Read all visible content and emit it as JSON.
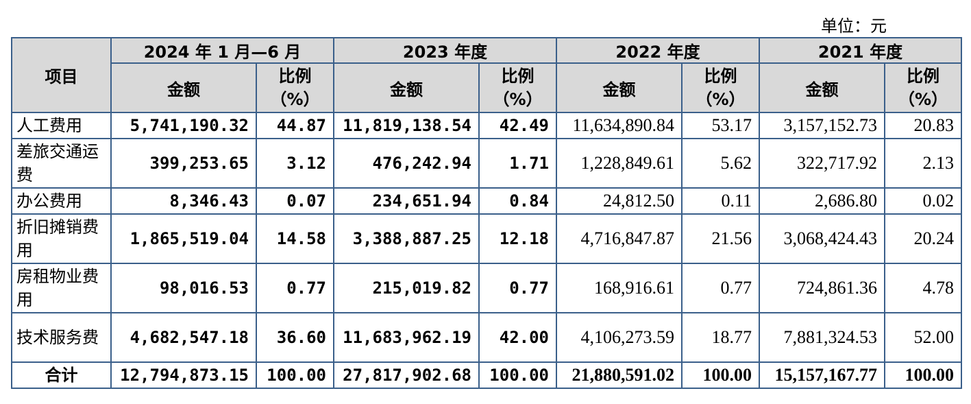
{
  "unit_label": "单位：元",
  "header": {
    "item": "项目",
    "periods": [
      "2024 年 1 月—6 月",
      "2023 年度",
      "2022 年度",
      "2021 年度"
    ],
    "amount": "金额",
    "ratio_line1": "比例",
    "ratio_line2": "（%）"
  },
  "rows": [
    {
      "label": "人工费用",
      "values": [
        "5,741,190.32",
        "44.87",
        "11,819,138.54",
        "42.49",
        "11,634,890.84",
        "53.17",
        "3,157,152.73",
        "20.83"
      ]
    },
    {
      "label": "差旅交通运费",
      "values": [
        "399,253.65",
        "3.12",
        "476,242.94",
        "1.71",
        "1,228,849.61",
        "5.62",
        "322,717.92",
        "2.13"
      ]
    },
    {
      "label": "办公费用",
      "values": [
        "8,346.43",
        "0.07",
        "234,651.94",
        "0.84",
        "24,812.50",
        "0.11",
        "2,686.80",
        "0.02"
      ]
    },
    {
      "label": "折旧摊销费用",
      "values": [
        "1,865,519.04",
        "14.58",
        "3,388,887.25",
        "12.18",
        "4,716,847.87",
        "21.56",
        "3,068,424.43",
        "20.24"
      ]
    },
    {
      "label": "房租物业费用",
      "values": [
        "98,016.53",
        "0.77",
        "215,019.82",
        "0.77",
        "168,916.61",
        "0.77",
        "724,861.36",
        "4.78"
      ]
    },
    {
      "label": "技术服务费",
      "values": [
        "4,682,547.18",
        "36.60",
        "11,683,962.19",
        "42.00",
        "4,106,273.59",
        "18.77",
        "7,881,324.53",
        "52.00"
      ]
    }
  ],
  "total": {
    "label": "合计",
    "values": [
      "12,794,873.15",
      "100.00",
      "27,817,902.68",
      "100.00",
      "21,880,591.02",
      "100.00",
      "15,157,167.77",
      "100.00"
    ]
  }
}
